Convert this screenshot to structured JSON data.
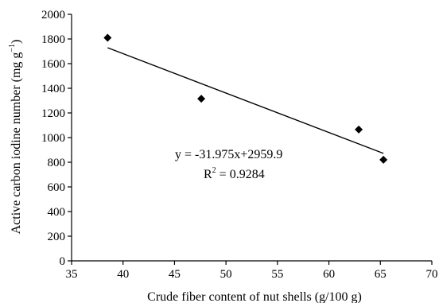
{
  "chart_data": {
    "type": "scatter",
    "xlabel": "Crude fiber content of nut shells (g/100 g)",
    "ylabel": "Active carbon iodine number (mg g",
    "ylabel_sup": "−1",
    "ylabel_close": ")",
    "xlim": [
      35,
      70
    ],
    "ylim": [
      0,
      2000
    ],
    "x_ticks": [
      35,
      40,
      45,
      50,
      55,
      60,
      65,
      70
    ],
    "y_ticks": [
      0,
      200,
      400,
      600,
      800,
      1000,
      1200,
      1400,
      1600,
      1800,
      2000
    ],
    "grid": false,
    "points": [
      {
        "x": 38.5,
        "y": 1810
      },
      {
        "x": 47.6,
        "y": 1315
      },
      {
        "x": 62.9,
        "y": 1065
      },
      {
        "x": 65.3,
        "y": 820
      }
    ],
    "trendline": {
      "slope": -31.975,
      "intercept": 2959.9,
      "x_range": [
        38.5,
        65.3
      ]
    },
    "annotation": {
      "equation": "y = -31.975x+2959.9",
      "r2_prefix": "R",
      "r2_sup": "2",
      "r2_value": " = 0.9284"
    }
  }
}
